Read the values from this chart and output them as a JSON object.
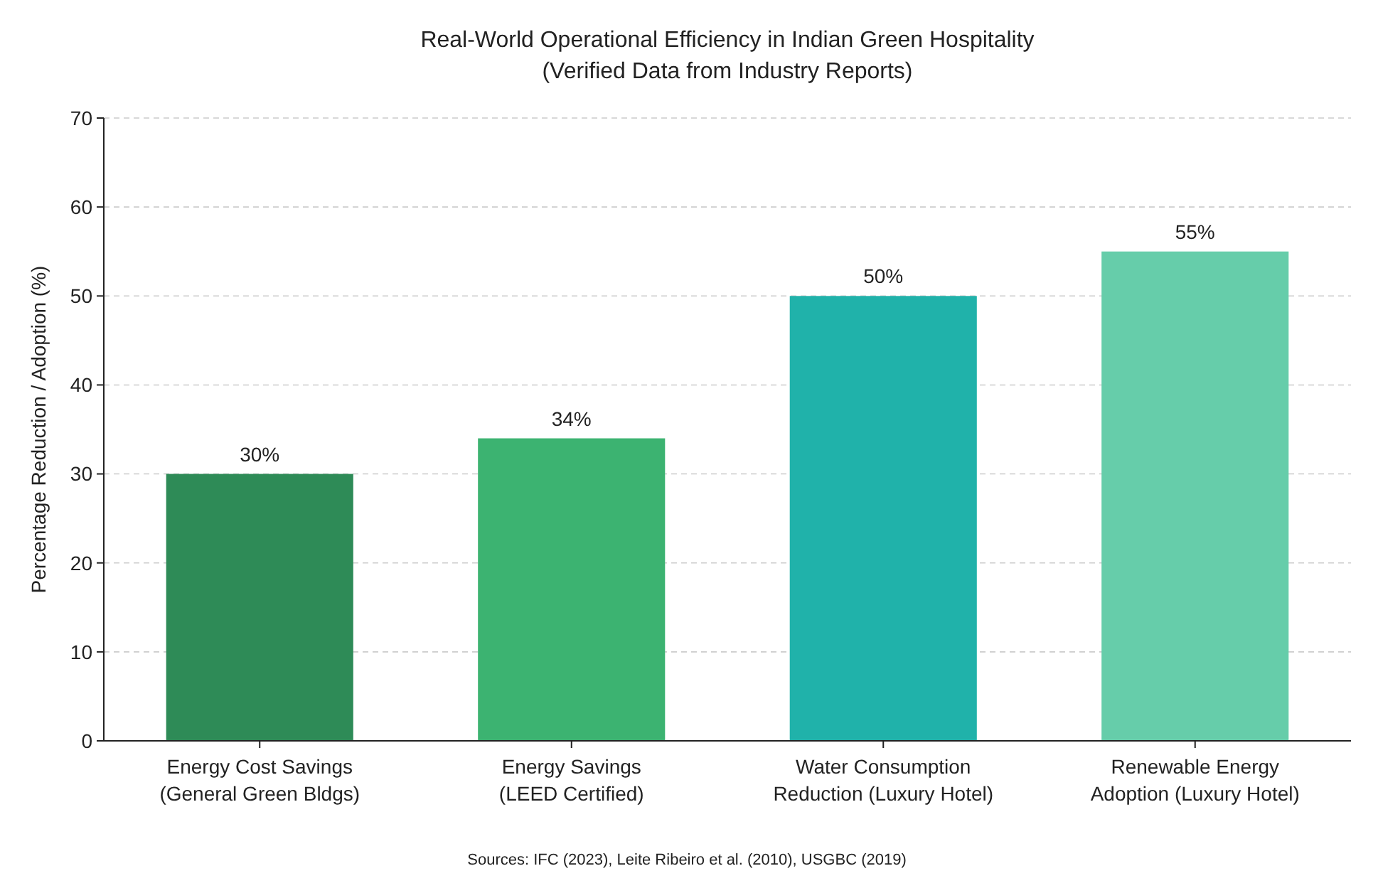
{
  "chart_data": {
    "type": "bar",
    "title": "Real-World Operational Efficiency in Indian Green Hospitality",
    "subtitle": "(Verified Data from Industry Reports)",
    "ylabel": "Percentage Reduction / Adoption (%)",
    "categories": [
      "Energy Cost Savings (General Green Bldgs)",
      "Energy Savings (LEED Certified)",
      "Water Consumption Reduction (Luxury Hotel)",
      "Renewable Energy Adoption (Luxury Hotel)"
    ],
    "values": [
      30,
      34,
      50,
      55
    ],
    "colors": [
      "#2e8b57",
      "#3cb371",
      "#20b2aa",
      "#66cdaa"
    ],
    "value_labels": [
      "30%",
      "34%",
      "50%",
      "55%"
    ],
    "ylim": [
      0,
      70
    ],
    "yticks": [
      0,
      10,
      20,
      30,
      40,
      50,
      60,
      70
    ],
    "grid": "y",
    "annotations": [
      "Sources: IFC (2023), Leite Ribeiro et al. (2010), USGBC (2019)"
    ]
  }
}
